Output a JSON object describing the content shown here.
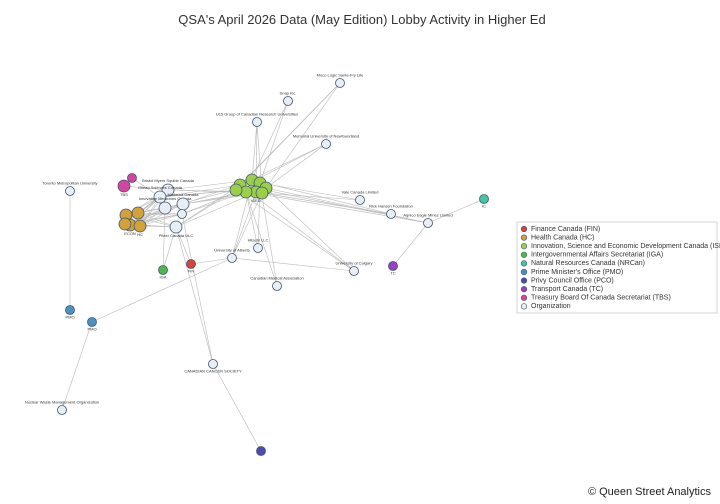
{
  "title": "QSA's April 2026 Data (May Edition) Lobby Activity in Higher Ed",
  "nodes": [
    {
      "label": "Moco Logic Sante-Fry Lite",
      "color": "#e8eef4"
    },
    {
      "label": "Snap Inc.",
      "color": "#e8eef4"
    },
    {
      "label": "U15 Group of Canadian Research Universities",
      "color": "#e8eef4"
    },
    {
      "label": "Memorial University of Newfoundland",
      "color": "#e8eef4"
    },
    {
      "label": "Toronto Metropolitan University",
      "color": "#e8eef4"
    },
    {
      "label": "Bristol Myers Squibb Canada",
      "color": "#e8eef4"
    },
    {
      "label": "Gilead Sciences Canada",
      "color": "#e8eef4"
    },
    {
      "label": "Innovative Medicines Canada",
      "color": "#e8eef4"
    },
    {
      "label": "Moderna Canada",
      "color": "#e8eef4"
    },
    {
      "label": "Pfizer Canada ULC",
      "color": "#e8eef4"
    },
    {
      "label": "Vale Canada Limited",
      "color": "#e8eef4"
    },
    {
      "label": "Rick Hansen Foundation",
      "color": "#e8eef4"
    },
    {
      "label": "Agnico Eagle Mines Limited",
      "color": "#e8eef4"
    },
    {
      "label": "Hitachi LLC",
      "color": "#e8eef4"
    },
    {
      "label": "University of Alberta",
      "color": "#e8eef4"
    },
    {
      "label": "University of Calgary",
      "color": "#e8eef4"
    },
    {
      "label": "Canadian Medical Association",
      "color": "#e8eef4"
    },
    {
      "label": "CANADIAN CANCER SOCIETY",
      "color": "#e8eef4"
    },
    {
      "label": "Nuclear Waste Management Organization",
      "color": "#e8eef4"
    },
    {
      "color": "#e8eef4"
    },
    {
      "label": "FIN",
      "color": "#d9433c"
    },
    {
      "label": "IGA",
      "color": "#4cb84c"
    },
    {
      "label": "IC",
      "color": "#3ec9a0"
    },
    {
      "label": "PMO",
      "color": "#4a90c4"
    },
    {
      "label": "PMO",
      "color": "#4a90c4"
    },
    {
      "color": "#4a4ab0"
    },
    {
      "label": "TC",
      "color": "#9b3fc4"
    },
    {
      "label": "TBS",
      "color": "#d444a0"
    },
    {
      "color": "#d444a0"
    },
    {
      "color": "#d4a03a"
    },
    {
      "color": "#d4a03a"
    },
    {
      "label": "ECON",
      "color": "#d4a03a"
    },
    {
      "label": "HC",
      "color": "#d4a03a"
    },
    {
      "color": "#d4a03a"
    },
    {
      "color": "#9bcf4a"
    },
    {
      "color": "#9bcf4a"
    },
    {
      "color": "#9bcf4a"
    },
    {
      "color": "#9bcf4a"
    },
    {
      "label": "ISED",
      "color": "#9bcf4a"
    },
    {
      "color": "#9bcf4a"
    },
    {
      "color": "#9bcf4a"
    },
    {
      "color": "#9bcf4a"
    }
  ],
  "legend": [
    {
      "label": "Finance Canada (FIN)",
      "color": "#d9433c"
    },
    {
      "label": "Health Canada (HC)",
      "color": "#d4a03a"
    },
    {
      "label": "Innovation, Science and Economic Development Canada (ISED)",
      "color": "#9bcf4a"
    },
    {
      "label": "Intergovernmental Affairs Secretariat (IGA)",
      "color": "#4cb84c"
    },
    {
      "label": "Natural Resources Canada (NRCan)",
      "color": "#3ec9a0"
    },
    {
      "label": "Prime Minister's Office (PMO)",
      "color": "#4a90c4"
    },
    {
      "label": "Privy Council Office (PCO)",
      "color": "#4a4ab0"
    },
    {
      "label": "Transport Canada (TC)",
      "color": "#9b3fc4"
    },
    {
      "label": "Treasury Board Of Canada Secretariat (TBS)",
      "color": "#d444a0"
    },
    {
      "label": "Organization",
      "color": "#e8eef4"
    }
  ],
  "footer": "© Queen Street Analytics"
}
